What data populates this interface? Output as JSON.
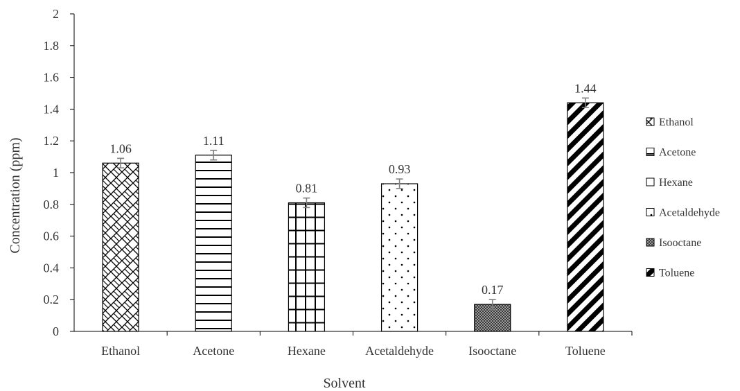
{
  "chart_data": {
    "type": "bar",
    "title": "",
    "xlabel": "Solvent",
    "ylabel": "Concentration (ppm)",
    "ylim": [
      0,
      2
    ],
    "yticks": [
      0,
      0.2,
      0.4,
      0.6,
      0.8,
      1,
      1.2,
      1.4,
      1.6,
      1.8,
      2
    ],
    "ytick_labels": [
      "0",
      "0.2",
      "0.4",
      "0.6",
      "0.8",
      "1",
      "1.2",
      "1.4",
      "1.6",
      "1.8",
      "2"
    ],
    "categories": [
      "Ethanol",
      "Acetone",
      "Hexane",
      "Acetaldehyde",
      "Isooctane",
      "Toluene"
    ],
    "values": [
      1.06,
      1.11,
      0.81,
      0.93,
      0.17,
      1.44
    ],
    "value_labels": [
      "1.06",
      "1.11",
      "0.81",
      "0.93",
      "0.17",
      "1.44"
    ],
    "error": [
      0.03,
      0.03,
      0.03,
      0.03,
      0.03,
      0.03
    ],
    "patterns": [
      "diamond-lattice",
      "horizontal-lines",
      "grid",
      "dots",
      "fine-checker",
      "diagonal-stripes"
    ],
    "grid": false,
    "legend_position": "right",
    "legend": [
      "Ethanol",
      "Acetone",
      "Hexane",
      "Acetaldehyde",
      "Isooctane",
      "Toluene"
    ],
    "colors": {
      "bar_stroke": "#000000",
      "error_bar": "#7f7f7f",
      "axis": "#000000",
      "text": "#333333"
    }
  }
}
